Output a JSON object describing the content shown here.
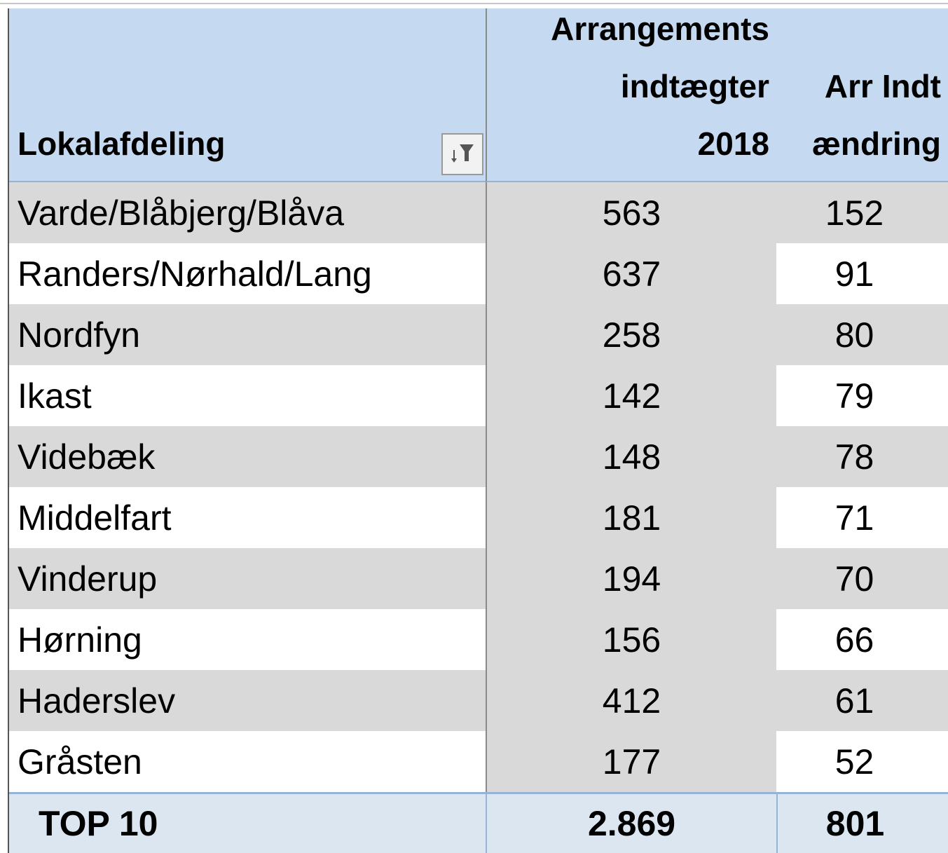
{
  "table": {
    "header": [
      [
        "Lokalafdeling"
      ],
      [
        "Arrangements",
        "indtægter",
        "2018"
      ],
      [
        "Arr Indt",
        "ændring"
      ]
    ],
    "rows": [
      [
        "Varde/Blåbjerg/Blåva",
        "563",
        "152"
      ],
      [
        "Randers/Nørhald/Lang",
        "637",
        "91"
      ],
      [
        "Nordfyn",
        "258",
        "80"
      ],
      [
        "Ikast",
        "142",
        "79"
      ],
      [
        "Videbæk",
        "148",
        "78"
      ],
      [
        "Middelfart",
        "181",
        "71"
      ],
      [
        "Vinderup",
        "194",
        "70"
      ],
      [
        "Hørning",
        "156",
        "66"
      ],
      [
        "Haderslev",
        "412",
        "61"
      ],
      [
        "Gråsten",
        "177",
        "52"
      ]
    ],
    "footer": [
      "TOP 10",
      "2.869",
      "801"
    ]
  }
}
